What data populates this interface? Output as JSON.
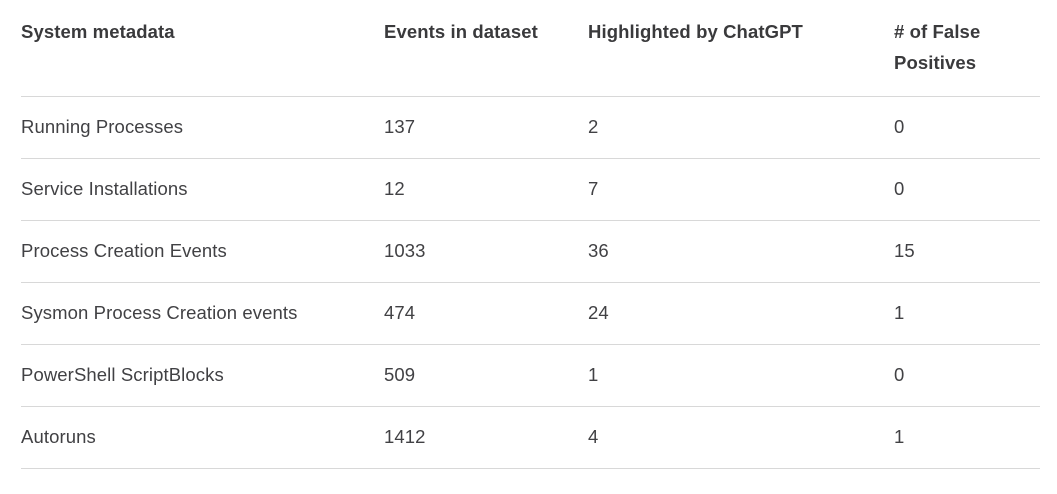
{
  "chart_data": {
    "type": "table",
    "columns": [
      "System metadata",
      "Events in dataset",
      "Highlighted by ChatGPT",
      "# of False Positives"
    ],
    "rows": [
      [
        "Running Processes",
        "137",
        "2",
        "0"
      ],
      [
        "Service Installations",
        "12",
        "7",
        "0"
      ],
      [
        "Process Creation Events",
        "1033",
        "36",
        "15"
      ],
      [
        "Sysmon Process Creation events",
        "474",
        "24",
        "1"
      ],
      [
        "PowerShell ScriptBlocks",
        "509",
        "1",
        "0"
      ],
      [
        "Autoruns",
        "1412",
        "4",
        "1"
      ]
    ]
  },
  "colors": {
    "header_text": "#3a3a3c",
    "body_text": "#414144",
    "divider": "#d8d8d8",
    "background": "#ffffff"
  }
}
